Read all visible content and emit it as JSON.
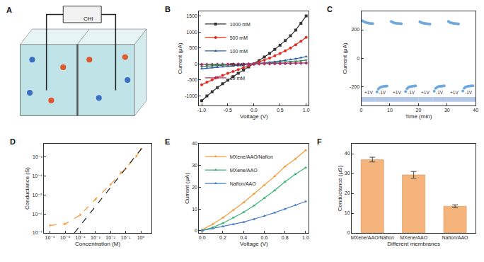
{
  "diagram": {
    "label": "A",
    "instrument": "CHI"
  },
  "chart_data": [
    {
      "label": "B",
      "type": "line",
      "x_label": "Voltage (V)",
      "y_label": "Current (μA)",
      "x": [
        -1,
        -0.9,
        -0.8,
        -0.7,
        -0.6,
        -0.5,
        -0.4,
        -0.3,
        -0.2,
        -0.1,
        0,
        0.1,
        0.2,
        0.3,
        0.4,
        0.5,
        0.6,
        0.7,
        0.8,
        0.9,
        1
      ],
      "xlim": [
        -1.05,
        1.05
      ],
      "xticks": [
        {
          "value": -1,
          "label": "-1.0"
        },
        {
          "value": -0.5,
          "label": "-0.5"
        },
        {
          "value": 0,
          "label": "0.0"
        },
        {
          "value": 0.5,
          "label": "0.5"
        },
        {
          "value": 1,
          "label": "1.0"
        }
      ],
      "ylim": [
        -1300,
        1650
      ],
      "yticks": [
        -1000,
        -500,
        0,
        500,
        1000,
        1500
      ],
      "legend": "upper left",
      "grid": false,
      "series": [
        {
          "name": "1000 mM",
          "color": "#333333",
          "marker": "square",
          "line_style": "solid",
          "values": [
            -1150,
            -1000,
            -870,
            -740,
            -620,
            -510,
            -400,
            -290,
            -190,
            -95,
            0,
            105,
            215,
            330,
            455,
            590,
            730,
            880,
            1060,
            1270,
            1500
          ]
        },
        {
          "name": "500 mM",
          "color": "#e0281d",
          "marker": "circle",
          "line_style": "solid",
          "values": [
            -650,
            -570,
            -495,
            -425,
            -360,
            -295,
            -235,
            -175,
            -115,
            -58,
            0,
            60,
            120,
            185,
            255,
            330,
            410,
            500,
            600,
            710,
            830
          ]
        },
        {
          "name": "100 mM",
          "color": "#2f5ea8",
          "marker": "triangle-up",
          "line_style": "solid",
          "values": [
            -150,
            -133,
            -117,
            -102,
            -87,
            -72,
            -57,
            -43,
            -29,
            -14,
            0,
            16,
            32,
            50,
            70,
            90,
            112,
            135,
            160,
            195,
            230
          ]
        },
        {
          "name": "50 mM",
          "color": "#2e8b57",
          "marker": "triangle-down",
          "line_style": "solid",
          "values": [
            -80,
            -71,
            -62,
            -54,
            -46,
            -38,
            -30,
            -22,
            -15,
            -7,
            0,
            8,
            16,
            25,
            35,
            45,
            56,
            68,
            82,
            100,
            120
          ]
        },
        {
          "name": "10 mM",
          "color": "#b0306a",
          "marker": "diamond",
          "line_style": "solid",
          "values": [
            -20,
            -18,
            -16,
            -14,
            -12,
            -10,
            -8,
            -6,
            -4,
            -2,
            0,
            2,
            4,
            6,
            9,
            11,
            14,
            17,
            21,
            25,
            30
          ]
        }
      ]
    },
    {
      "label": "C",
      "type": "scatter",
      "x_label": "Time (min)",
      "y_label": "Current (μA)",
      "x": [
        0.5,
        1,
        1.5,
        2,
        2.5,
        3,
        3.5,
        4,
        5.5,
        6,
        6.5,
        7,
        7.5,
        8,
        8.5,
        9,
        10.5,
        11,
        11.5,
        12,
        12.5,
        13,
        13.5,
        14,
        15.5,
        16,
        16.5,
        17,
        17.5,
        18,
        18.5,
        19,
        20.5,
        21,
        21.5,
        22,
        22.5,
        23,
        23.5,
        24,
        25.5,
        26,
        26.5,
        27,
        27.5,
        28,
        28.5,
        29,
        30.5,
        31,
        31.5,
        32,
        32.5,
        33,
        33.5,
        34,
        35.5,
        36,
        36.5,
        37,
        37.5,
        38,
        38.5,
        39
      ],
      "xlim": [
        0,
        40
      ],
      "xticks": [
        0,
        10,
        20,
        30,
        40
      ],
      "ylim": [
        -330,
        330
      ],
      "yticks": [
        -200,
        0,
        200
      ],
      "grid": false,
      "series": [
        {
          "color": "#6fa8dc",
          "marker": "circle",
          "values": [
            262,
            256,
            252,
            249,
            247,
            245,
            244,
            243,
            -235,
            -215,
            -205,
            -200,
            -198,
            -196,
            -195,
            -194,
            258,
            252,
            249,
            246,
            245,
            244,
            243,
            242,
            -232,
            -212,
            -203,
            -199,
            -197,
            -195,
            -194,
            -193,
            256,
            250,
            247,
            245,
            243,
            242,
            241,
            240,
            -230,
            -210,
            -202,
            -198,
            -196,
            -195,
            -194,
            -193,
            258,
            251,
            248,
            246,
            244,
            243,
            242,
            241,
            -228,
            -208,
            -200,
            -197,
            -195,
            -194,
            -193,
            -192
          ]
        }
      ],
      "annotations": [
        {
          "text": "+1V",
          "x0": 0,
          "x1": 5
        },
        {
          "text": "-1V",
          "x0": 5,
          "x1": 10
        },
        {
          "text": "+1V",
          "x0": 10,
          "x1": 15
        },
        {
          "text": "-1V",
          "x0": 15,
          "x1": 20
        },
        {
          "text": "+1V",
          "x0": 20,
          "x1": 25
        },
        {
          "text": "-1V",
          "x0": 25,
          "x1": 30
        },
        {
          "text": "+1V",
          "x0": 30,
          "x1": 35
        },
        {
          "text": "-1V",
          "x0": 35,
          "x1": 40
        }
      ]
    },
    {
      "label": "D",
      "type": "line",
      "log": true,
      "x_label": "Concentration (M)",
      "y_label": "Conductance (S)",
      "xlim": [
        4e-07,
        5
      ],
      "ylim": [
        1e-07,
        0.005
      ],
      "xticks": [
        {
          "value": 1e-06,
          "label": "10⁻⁶"
        },
        {
          "value": 1e-05,
          "label": "10⁻⁵"
        },
        {
          "value": 0.0001,
          "label": "10⁻⁴"
        },
        {
          "value": 0.001,
          "label": "10⁻³"
        },
        {
          "value": 0.01,
          "label": "10⁻²"
        },
        {
          "value": 0.1,
          "label": "10⁻¹"
        },
        {
          "value": 1,
          "label": "10⁰"
        }
      ],
      "yticks": [
        {
          "value": 1e-07,
          "label": "10⁻⁷"
        },
        {
          "value": 1e-06,
          "label": "10⁻⁶"
        },
        {
          "value": 1e-05,
          "label": "10⁻⁵"
        },
        {
          "value": 0.0001,
          "label": "10⁻⁴"
        },
        {
          "value": 0.001,
          "label": "10⁻³"
        }
      ],
      "grid": false,
      "series": [
        {
          "color": "#f39c3c",
          "marker": "triangle-right",
          "line_style": "dashed",
          "x": [
            1e-06,
            1e-05,
            0.0001,
            0.001,
            0.01,
            0.05,
            0.1,
            0.5,
            1
          ],
          "values": [
            2.5e-07,
            3e-07,
            9e-07,
            6e-06,
            3.5e-05,
            0.00015,
            0.00025,
            0.0011,
            0.0025
          ]
        },
        {
          "color": "#222222",
          "marker": "none",
          "line_style": "dashed",
          "x": [
            4e-05,
            2
          ],
          "values": [
            1e-07,
            0.005
          ]
        }
      ]
    },
    {
      "label": "E",
      "type": "line",
      "x_label": "Voltage (V)",
      "y_label": "Current (μA)",
      "x": [
        0,
        0.1,
        0.2,
        0.3,
        0.4,
        0.5,
        0.6,
        0.7,
        0.8,
        0.9,
        1
      ],
      "xlim": [
        -0.03,
        1.03
      ],
      "xticks": [
        {
          "value": 0,
          "label": "0.0"
        },
        {
          "value": 0.2,
          "label": "0.2"
        },
        {
          "value": 0.4,
          "label": "0.4"
        },
        {
          "value": 0.6,
          "label": "0.6"
        },
        {
          "value": 0.8,
          "label": "0.8"
        },
        {
          "value": 1,
          "label": "1.0"
        }
      ],
      "ylim": [
        -1,
        40
      ],
      "yticks": [
        0,
        10,
        20,
        30,
        40
      ],
      "legend": "upper left",
      "grid": false,
      "series": [
        {
          "name": "MXene/AAO/Nafion",
          "color": "#f39c3c",
          "marker": "triangle-up",
          "line_style": "solid",
          "values": [
            0.5,
            3,
            6,
            9.5,
            13,
            17,
            21,
            25,
            29.5,
            33,
            37
          ]
        },
        {
          "name": "MXene/AAO",
          "color": "#3cb371",
          "marker": "triangle-up",
          "line_style": "solid",
          "values": [
            0.2,
            1.5,
            3.5,
            6,
            8.5,
            11.5,
            15,
            18.5,
            22.5,
            26,
            29
          ]
        },
        {
          "name": "Nafion/AAO",
          "color": "#4a7fc1",
          "marker": "triangle-up",
          "line_style": "solid",
          "values": [
            0.1,
            1,
            2,
            3,
            4,
            5.3,
            6.8,
            8.3,
            10,
            11.8,
            13.5
          ]
        }
      ]
    },
    {
      "label": "F",
      "type": "bar",
      "x_label": "Different membranes",
      "y_label": "Conductance (μS)",
      "categories": [
        "MXene/AAO/Nafion",
        "MXene/AAO",
        "Nafion/AAO"
      ],
      "values": [
        37,
        29.3,
        13.5
      ],
      "errors": [
        1.2,
        1.7,
        0.7
      ],
      "color": "#f5b47c",
      "ylim": [
        0,
        45
      ],
      "yticks": [
        0,
        10,
        20,
        30,
        40
      ],
      "grid": false
    }
  ]
}
